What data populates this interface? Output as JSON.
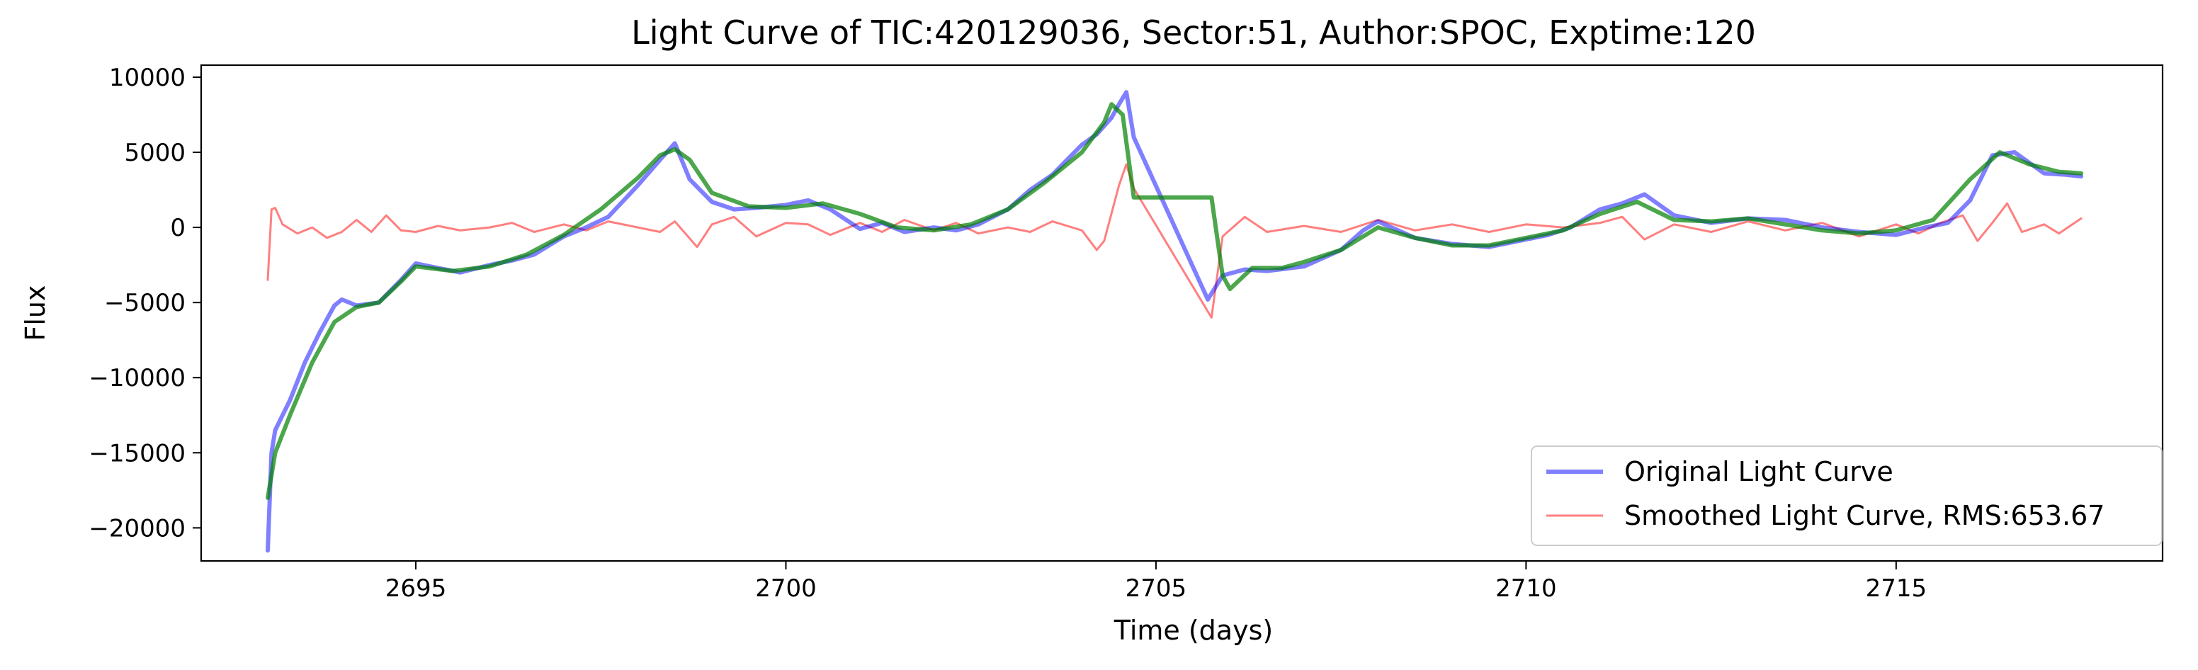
{
  "chart_data": {
    "type": "line",
    "title": "Light Curve of TIC:420129036, Sector:51, Author:SPOC, Exptime:120",
    "xlabel": "Time (days)",
    "ylabel": "Flux",
    "xlim": [
      2692.1,
      2718.6
    ],
    "ylim": [
      -22200,
      10800
    ],
    "xticks": [
      2695,
      2700,
      2705,
      2710,
      2715
    ],
    "xtick_labels": [
      "2695",
      "2700",
      "2705",
      "2710",
      "2715"
    ],
    "yticks": [
      -20000,
      -15000,
      -10000,
      -5000,
      0,
      5000,
      10000
    ],
    "ytick_labels": [
      "−20000",
      "−15000",
      "−10000",
      "−5000",
      "0",
      "5000",
      "10000"
    ],
    "grid": false,
    "legend_position": "lower-right",
    "series": [
      {
        "name": "Original Light Curve",
        "color": "#0000ff",
        "opacity": 0.5,
        "role": "original",
        "x": [
          2693.0,
          2693.05,
          2693.1,
          2693.2,
          2693.3,
          2693.5,
          2693.7,
          2693.9,
          2694.0,
          2694.2,
          2694.5,
          2694.8,
          2695.0,
          2695.3,
          2695.6,
          2696.0,
          2696.3,
          2696.6,
          2697.0,
          2697.3,
          2697.6,
          2698.0,
          2698.3,
          2698.5,
          2698.7,
          2699.0,
          2699.3,
          2699.6,
          2700.0,
          2700.3,
          2700.6,
          2701.0,
          2701.3,
          2701.6,
          2702.0,
          2702.3,
          2702.6,
          2703.0,
          2703.3,
          2703.6,
          2704.0,
          2704.2,
          2704.4,
          2704.5,
          2704.6,
          2704.7,
          2705.7,
          2705.9,
          2706.2,
          2706.5,
          2707.0,
          2707.5,
          2707.8,
          2708.0,
          2708.5,
          2709.0,
          2709.5,
          2710.0,
          2710.3,
          2710.6,
          2711.0,
          2711.3,
          2711.6,
          2712.0,
          2712.5,
          2713.0,
          2713.5,
          2714.0,
          2714.5,
          2715.0,
          2715.4,
          2715.7,
          2716.0,
          2716.3,
          2716.6,
          2717.0,
          2717.3,
          2717.5
        ],
        "y": [
          -21500,
          -15000,
          -13500,
          -12500,
          -11500,
          -9000,
          -7000,
          -5200,
          -4800,
          -5200,
          -5000,
          -3500,
          -2400,
          -2700,
          -3000,
          -2500,
          -2200,
          -1800,
          -600,
          0,
          700,
          2800,
          4500,
          5600,
          3200,
          1700,
          1200,
          1300,
          1500,
          1800,
          1200,
          -100,
          300,
          -300,
          0,
          -200,
          200,
          1200,
          2500,
          3500,
          5500,
          6200,
          7300,
          8200,
          9000,
          6000,
          -4800,
          -3200,
          -2800,
          -2900,
          -2600,
          -1500,
          -200,
          400,
          -700,
          -1100,
          -1300,
          -800,
          -500,
          0,
          1200,
          1600,
          2200,
          800,
          300,
          600,
          500,
          0,
          -300,
          -500,
          0,
          300,
          1800,
          4800,
          5000,
          3600,
          3500,
          3400
        ]
      },
      {
        "name": "Smoothed Light Curve, RMS:653.67",
        "color": "#ff0000",
        "opacity": 0.5,
        "role": "residual",
        "x": [
          2693.0,
          2693.05,
          2693.1,
          2693.2,
          2693.4,
          2693.6,
          2693.8,
          2694.0,
          2694.2,
          2694.4,
          2694.6,
          2694.8,
          2695.0,
          2695.3,
          2695.6,
          2696.0,
          2696.3,
          2696.6,
          2697.0,
          2697.3,
          2697.6,
          2698.0,
          2698.3,
          2698.5,
          2698.8,
          2699.0,
          2699.3,
          2699.6,
          2700.0,
          2700.3,
          2700.6,
          2701.0,
          2701.3,
          2701.6,
          2702.0,
          2702.3,
          2702.6,
          2703.0,
          2703.3,
          2703.6,
          2704.0,
          2704.2,
          2704.3,
          2704.5,
          2704.6,
          2704.7,
          2705.75,
          2705.9,
          2706.2,
          2706.5,
          2707.0,
          2707.5,
          2708.0,
          2708.5,
          2709.0,
          2709.5,
          2710.0,
          2710.5,
          2711.0,
          2711.3,
          2711.6,
          2712.0,
          2712.5,
          2713.0,
          2713.5,
          2714.0,
          2714.5,
          2715.0,
          2715.3,
          2715.6,
          2715.9,
          2716.1,
          2716.3,
          2716.5,
          2716.7,
          2717.0,
          2717.2,
          2717.5
        ],
        "y": [
          -3500,
          1200,
          1300,
          200,
          -400,
          0,
          -700,
          -300,
          500,
          -300,
          800,
          -200,
          -300,
          100,
          -200,
          0,
          300,
          -300,
          200,
          -200,
          400,
          0,
          -300,
          400,
          -1300,
          200,
          700,
          -600,
          300,
          200,
          -500,
          300,
          -300,
          500,
          -200,
          300,
          -400,
          0,
          -300,
          400,
          -200,
          -1500,
          -900,
          2800,
          4200,
          2600,
          -6000,
          -600,
          700,
          -300,
          100,
          -300,
          500,
          -200,
          200,
          -300,
          200,
          0,
          300,
          700,
          -800,
          200,
          -300,
          400,
          -200,
          300,
          -600,
          200,
          -400,
          300,
          800,
          -900,
          300,
          1600,
          -300,
          200,
          -400,
          600
        ]
      },
      {
        "name": "",
        "color": "#008000",
        "opacity": 0.7,
        "role": "fit",
        "x": [
          2693.0,
          2693.1,
          2693.3,
          2693.6,
          2693.9,
          2694.2,
          2694.5,
          2694.8,
          2695.0,
          2695.5,
          2696.0,
          2696.5,
          2697.0,
          2697.5,
          2698.0,
          2698.3,
          2698.5,
          2698.7,
          2699.0,
          2699.5,
          2700.0,
          2700.5,
          2701.0,
          2701.5,
          2702.0,
          2702.5,
          2703.0,
          2703.5,
          2704.0,
          2704.3,
          2704.4,
          2704.55,
          2704.7,
          2705.75,
          2705.9,
          2706.0,
          2706.3,
          2706.7,
          2707.0,
          2707.5,
          2708.0,
          2708.5,
          2709.0,
          2709.5,
          2710.0,
          2710.5,
          2711.0,
          2711.5,
          2712.0,
          2712.5,
          2713.0,
          2713.5,
          2714.0,
          2714.5,
          2715.0,
          2715.5,
          2716.0,
          2716.4,
          2716.8,
          2717.2,
          2717.5
        ],
        "y": [
          -18000,
          -15000,
          -12500,
          -9000,
          -6300,
          -5300,
          -5000,
          -3600,
          -2600,
          -2900,
          -2600,
          -1800,
          -500,
          1200,
          3300,
          4800,
          5200,
          4500,
          2300,
          1400,
          1300,
          1600,
          900,
          0,
          -200,
          200,
          1200,
          3000,
          5000,
          7000,
          8200,
          7500,
          2000,
          2000,
          -3200,
          -4100,
          -2700,
          -2700,
          -2300,
          -1500,
          0,
          -700,
          -1200,
          -1200,
          -700,
          -200,
          900,
          1700,
          500,
          400,
          600,
          200,
          -200,
          -400,
          -200,
          500,
          3200,
          5000,
          4200,
          3700,
          3600
        ]
      }
    ]
  }
}
